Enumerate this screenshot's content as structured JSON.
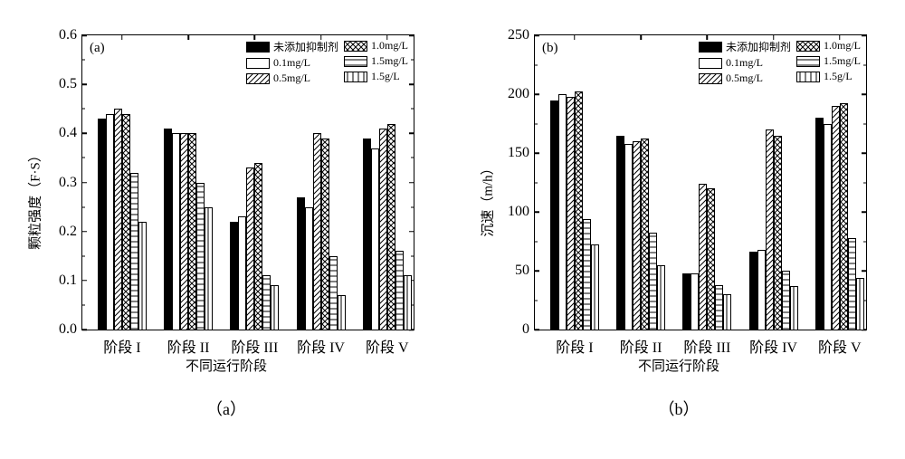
{
  "fill_classes": [
    "fill-solid-black",
    "fill-white",
    "fill-diag",
    "fill-cross",
    "fill-horiz",
    "fill-vert"
  ],
  "series_labels": [
    "未添加抑制剂",
    "0.1mg/L",
    "0.5mg/L",
    "1.0mg/L",
    "1.5mg/L",
    "1.5g/L"
  ],
  "x_categories": [
    "阶段 I",
    "阶段 II",
    "阶段 III",
    "阶段 IV",
    "阶段 V"
  ],
  "x_positions_pct": [
    12,
    32,
    52,
    72,
    92
  ],
  "panel_a": {
    "tag": "(a)",
    "sub_caption": "（a）",
    "ylabel": "颗粒强度（F·S）",
    "xlabel": "不同运行阶段",
    "ylim": [
      0.0,
      0.6
    ],
    "yticks": [
      0.0,
      0.1,
      0.2,
      0.3,
      0.4,
      0.5,
      0.6
    ],
    "ytick_labels": [
      "0.0",
      "0.1",
      "0.2",
      "0.3",
      "0.4",
      "0.5",
      "0.6"
    ],
    "minor_step": 0.05,
    "values": [
      [
        0.43,
        0.44,
        0.45,
        0.44,
        0.32,
        0.22
      ],
      [
        0.41,
        0.4,
        0.4,
        0.4,
        0.3,
        0.25
      ],
      [
        0.22,
        0.23,
        0.33,
        0.34,
        0.11,
        0.09
      ],
      [
        0.27,
        0.25,
        0.4,
        0.39,
        0.15,
        0.07
      ],
      [
        0.39,
        0.37,
        0.41,
        0.42,
        0.16,
        0.11
      ]
    ]
  },
  "panel_b": {
    "tag": "(b)",
    "sub_caption": "（b）",
    "ylabel": "沉速（m/h）",
    "xlabel": "不同运行阶段",
    "ylim": [
      0,
      250
    ],
    "yticks": [
      0,
      50,
      100,
      150,
      200,
      250
    ],
    "ytick_labels": [
      "0",
      "50",
      "100",
      "150",
      "200",
      "250"
    ],
    "minor_step": 25,
    "values": [
      [
        195,
        200,
        198,
        202,
        94,
        72
      ],
      [
        165,
        158,
        160,
        162,
        82,
        55
      ],
      [
        48,
        48,
        124,
        120,
        38,
        30
      ],
      [
        66,
        68,
        170,
        165,
        50,
        37
      ],
      [
        180,
        175,
        190,
        192,
        78,
        44
      ]
    ]
  },
  "label_fontsize": 15,
  "tick_fontsize": 13,
  "legend_fontsize": 12,
  "colors": {
    "axis": "#000000",
    "background": "#ffffff"
  }
}
